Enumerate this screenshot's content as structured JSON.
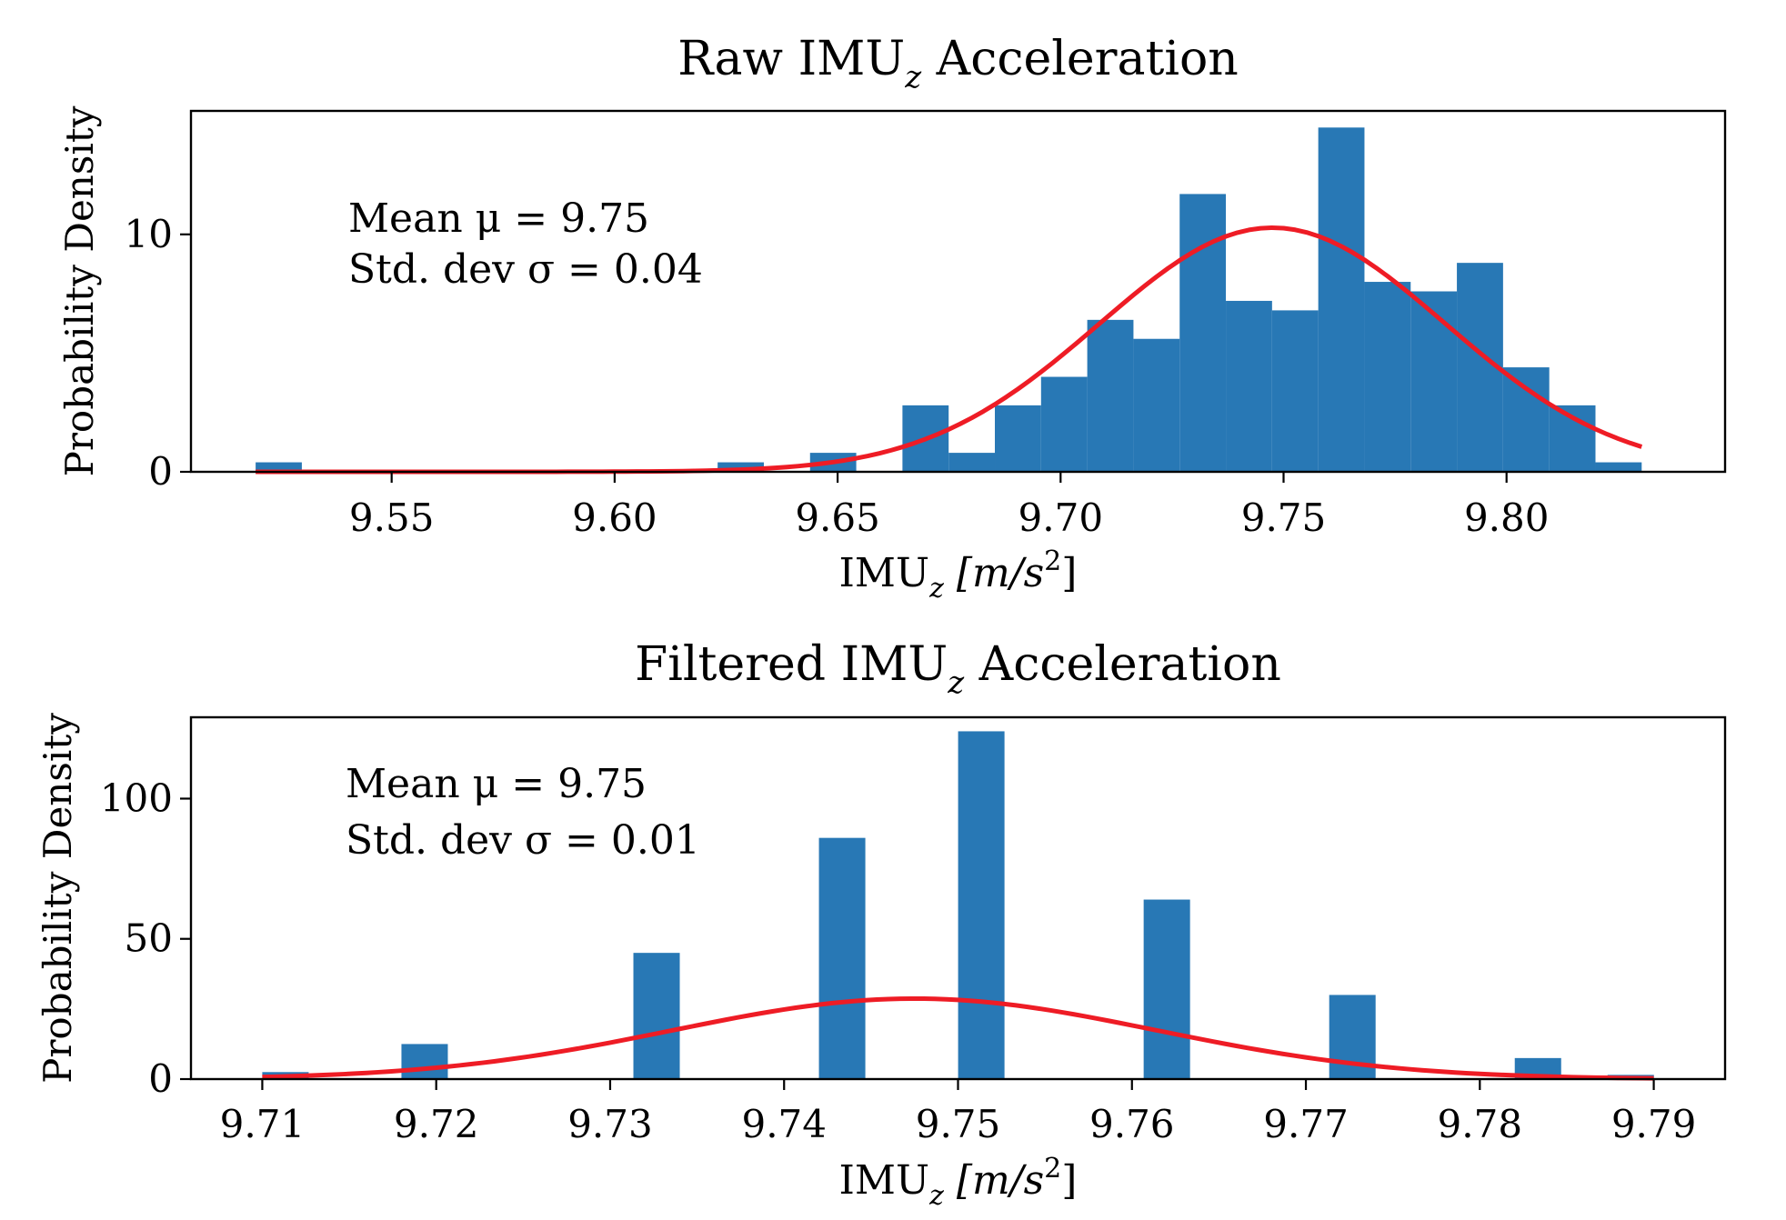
{
  "chart_data": [
    {
      "type": "bar",
      "title_main": "Raw IMU",
      "title_sub": "z",
      "title_rest": " Acceleration",
      "xlabel_main": "IMU",
      "xlabel_sub": "z",
      "xlabel_unit": "[m/s",
      "xlabel_sup": "2",
      "xlabel_close": "]",
      "ylabel": "Probability Density",
      "annotation": [
        "Mean μ = 9.75",
        "Std. dev σ = 0.04"
      ],
      "xlim": [
        9.505,
        9.849
      ],
      "ylim": [
        0,
        15.2
      ],
      "xticks": [
        9.55,
        9.6,
        9.65,
        9.7,
        9.75,
        9.8
      ],
      "xtick_labels": [
        "9.55",
        "9.60",
        "9.65",
        "9.70",
        "9.75",
        "9.80"
      ],
      "yticks": [
        0,
        10
      ],
      "ytick_labels": [
        "0",
        "10"
      ],
      "bin_start": 9.5195,
      "bin_width": 0.01036,
      "bin_densities": [
        0.4,
        0,
        0,
        0,
        0,
        0,
        0,
        0,
        0,
        0,
        0.4,
        0,
        0.8,
        0,
        2.8,
        0.8,
        2.8,
        4.0,
        6.4,
        5.6,
        11.7,
        7.2,
        6.8,
        14.5,
        8.0,
        7.6,
        8.8,
        4.4,
        2.8,
        0.4
      ],
      "bar_color": "#2878b5",
      "fit": {
        "type": "normal",
        "mu": 9.7475,
        "sigma": 0.0388,
        "x_range": [
          9.5195,
          9.8303
        ],
        "color": "#ee1c25"
      }
    },
    {
      "type": "bar",
      "title_main": "Filtered IMU",
      "title_sub": "z",
      "title_rest": " Acceleration",
      "xlabel_main": "IMU",
      "xlabel_sub": "z",
      "xlabel_unit": "[m/s",
      "xlabel_sup": "2",
      "xlabel_close": "]",
      "ylabel": "Probability Density",
      "annotation": [
        "Mean μ = 9.75",
        "Std. dev σ = 0.01"
      ],
      "xlim": [
        9.7059,
        9.7941
      ],
      "ylim": [
        0,
        129
      ],
      "xticks": [
        9.71,
        9.72,
        9.73,
        9.74,
        9.75,
        9.76,
        9.77,
        9.78,
        9.79
      ],
      "xtick_labels": [
        "9.71",
        "9.72",
        "9.73",
        "9.74",
        "9.75",
        "9.76",
        "9.77",
        "9.78",
        "9.79"
      ],
      "yticks": [
        0,
        50,
        100
      ],
      "ytick_labels": [
        "0",
        "50",
        "100"
      ],
      "bin_start": 9.71,
      "bin_width": 0.002667,
      "bin_densities": [
        2.5,
        0,
        0,
        12.5,
        0,
        0,
        0,
        0,
        45,
        0,
        0,
        0,
        86,
        0,
        0,
        124,
        0,
        0,
        0,
        64,
        0,
        0,
        0,
        30,
        0,
        0,
        0,
        7.5,
        0,
        1.5
      ],
      "bar_color": "#2878b5",
      "fit": {
        "type": "normal",
        "mu": 9.7475,
        "sigma": 0.0139,
        "x_range": [
          9.71,
          9.79
        ],
        "color": "#ee1c25"
      }
    }
  ]
}
